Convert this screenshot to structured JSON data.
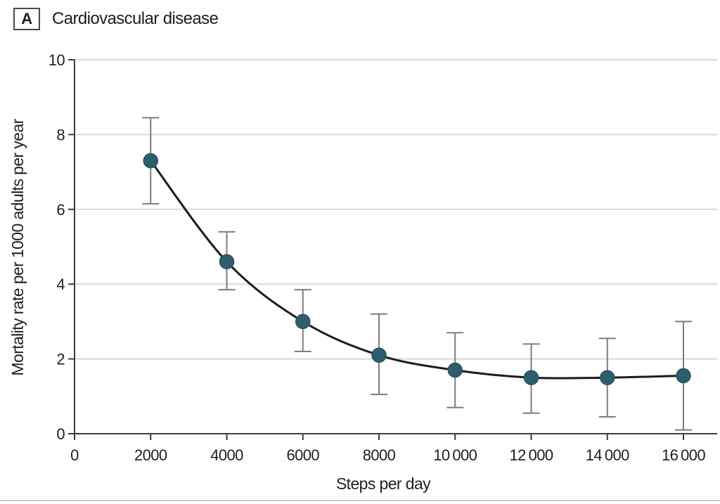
{
  "panel": {
    "label": "A",
    "title": "Cardiovascular disease"
  },
  "colors": {
    "point_fill": "#2e5e6c",
    "point_stroke": "#27525f",
    "trend_line": "#1c1c1c",
    "error_bar": "#7d7d7d",
    "gridline": "#d9d9d9",
    "axis": "#3c3c3c",
    "text": "#1f1f1f",
    "bottom_divider": "#c9c9c9"
  },
  "chart_data": {
    "type": "line",
    "title": "Cardiovascular disease",
    "xlabel": "Steps per day",
    "ylabel": "Mortality rate per 1000 adults per year",
    "x": [
      2000,
      4000,
      6000,
      8000,
      10000,
      12000,
      14000,
      16000
    ],
    "y": [
      7.3,
      4.6,
      3.0,
      2.1,
      1.7,
      1.5,
      1.5,
      1.55
    ],
    "ci_low": [
      6.15,
      3.85,
      2.2,
      1.05,
      0.7,
      0.55,
      0.45,
      0.1
    ],
    "ci_high": [
      8.45,
      5.4,
      3.85,
      3.2,
      2.7,
      2.4,
      2.55,
      3.0
    ],
    "xlim": [
      0,
      16000
    ],
    "ylim": [
      0,
      10
    ],
    "x_ticks": [
      0,
      2000,
      4000,
      6000,
      8000,
      10000,
      12000,
      14000,
      16000
    ],
    "x_tick_labels": [
      "0",
      "2000",
      "4000",
      "6000",
      "8000",
      "10 000",
      "12 000",
      "14 000",
      "16 000"
    ],
    "y_ticks": [
      0,
      2,
      4,
      6,
      8,
      10
    ],
    "y_tick_labels": [
      "0",
      "2",
      "4",
      "6",
      "8",
      "10"
    ],
    "grid": "horizontal",
    "gridline_values": [
      2,
      4,
      6,
      8,
      10
    ],
    "legend_position": "none",
    "error_bars": true
  }
}
